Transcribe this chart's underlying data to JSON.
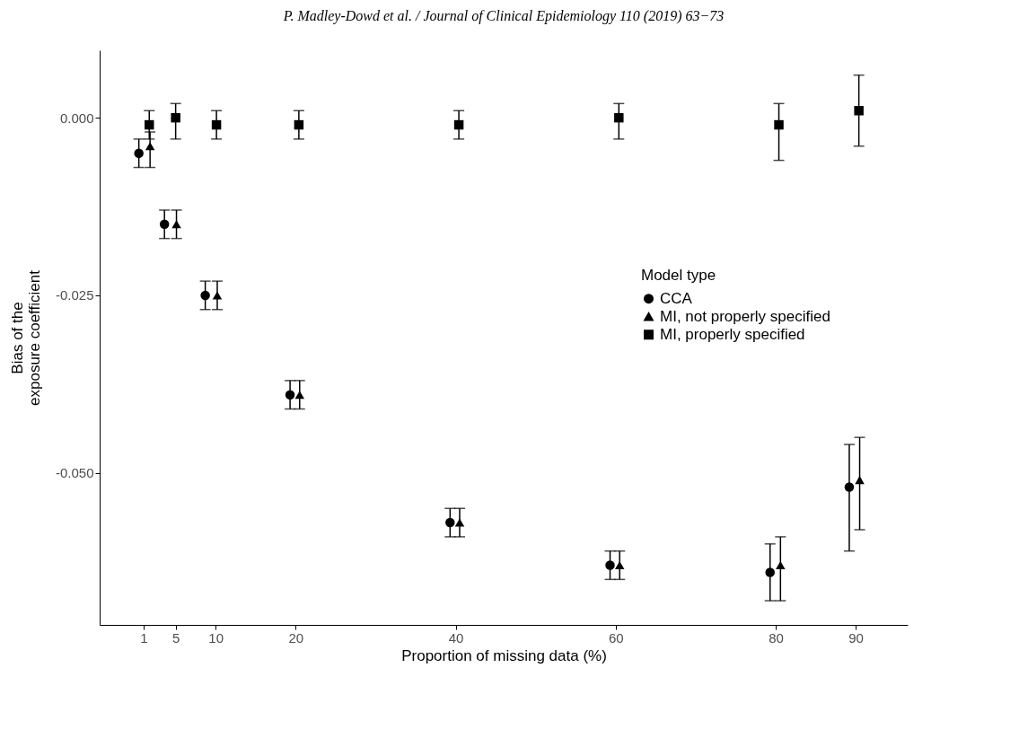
{
  "chart_data": {
    "type": "scatter",
    "title": "P. Madley-Dowd et al. / Journal of Clinical Epidemiology 110 (2019) 63−73",
    "xlabel": "Proportion of missing data (%)",
    "ylabel": "Bias of the\nexposure coefficient",
    "legend_title": "Model type",
    "legend": "right",
    "grid": false,
    "xlim": [
      -4.5,
      96.5
    ],
    "xticks": [
      1,
      5,
      10,
      20,
      40,
      60,
      80,
      90
    ],
    "ylim": [
      -0.0714,
      0.0095
    ],
    "yticks": [
      {
        "value": 0,
        "label": "0.000"
      },
      {
        "value": -0.025,
        "label": "-0.025"
      },
      {
        "value": -0.05,
        "label": "-0.050"
      }
    ],
    "series": [
      {
        "name": "CCA",
        "color": "#000000",
        "marker": "circle",
        "x": [
          0.4,
          3.6,
          8.7,
          19.3,
          39.3,
          59.3,
          79.3,
          89.2
        ],
        "values": [
          -0.005,
          -0.015,
          -0.025,
          -0.039,
          -0.057,
          -0.063,
          -0.064,
          -0.052
        ],
        "errors": [
          [
            -0.007,
            -0.003
          ],
          [
            -0.017,
            -0.013
          ],
          [
            -0.027,
            -0.023
          ],
          [
            -0.041,
            -0.037
          ],
          [
            -0.059,
            -0.055
          ],
          [
            -0.065,
            -0.061
          ],
          [
            -0.068,
            -0.06
          ],
          [
            -0.061,
            -0.046
          ]
        ]
      },
      {
        "name": "MI, not properly specified",
        "color": "#000000",
        "marker": "triangle",
        "x": [
          1.8,
          5.1,
          10.2,
          20.5,
          40.5,
          60.5,
          80.6,
          90.5
        ],
        "values": [
          -0.004,
          -0.015,
          -0.025,
          -0.039,
          -0.057,
          -0.063,
          -0.063,
          -0.051
        ],
        "errors": [
          [
            -0.007,
            -0.002
          ],
          [
            -0.017,
            -0.013
          ],
          [
            -0.027,
            -0.023
          ],
          [
            -0.041,
            -0.037
          ],
          [
            -0.059,
            -0.055
          ],
          [
            -0.065,
            -0.061
          ],
          [
            -0.068,
            -0.059
          ],
          [
            -0.058,
            -0.045
          ]
        ]
      },
      {
        "name": "MI, properly specified",
        "color": "#000000",
        "marker": "square",
        "x": [
          1.7,
          5.0,
          10.1,
          20.4,
          40.4,
          60.4,
          80.4,
          90.4
        ],
        "values": [
          -0.001,
          0.0,
          -0.001,
          -0.001,
          -0.001,
          0.0,
          -0.001,
          0.001
        ],
        "errors": [
          [
            -0.003,
            0.001
          ],
          [
            -0.003,
            0.002
          ],
          [
            -0.003,
            0.001
          ],
          [
            -0.003,
            0.001
          ],
          [
            -0.003,
            0.001
          ],
          [
            -0.003,
            0.002
          ],
          [
            -0.006,
            0.002
          ],
          [
            -0.004,
            0.006
          ]
        ]
      }
    ]
  }
}
